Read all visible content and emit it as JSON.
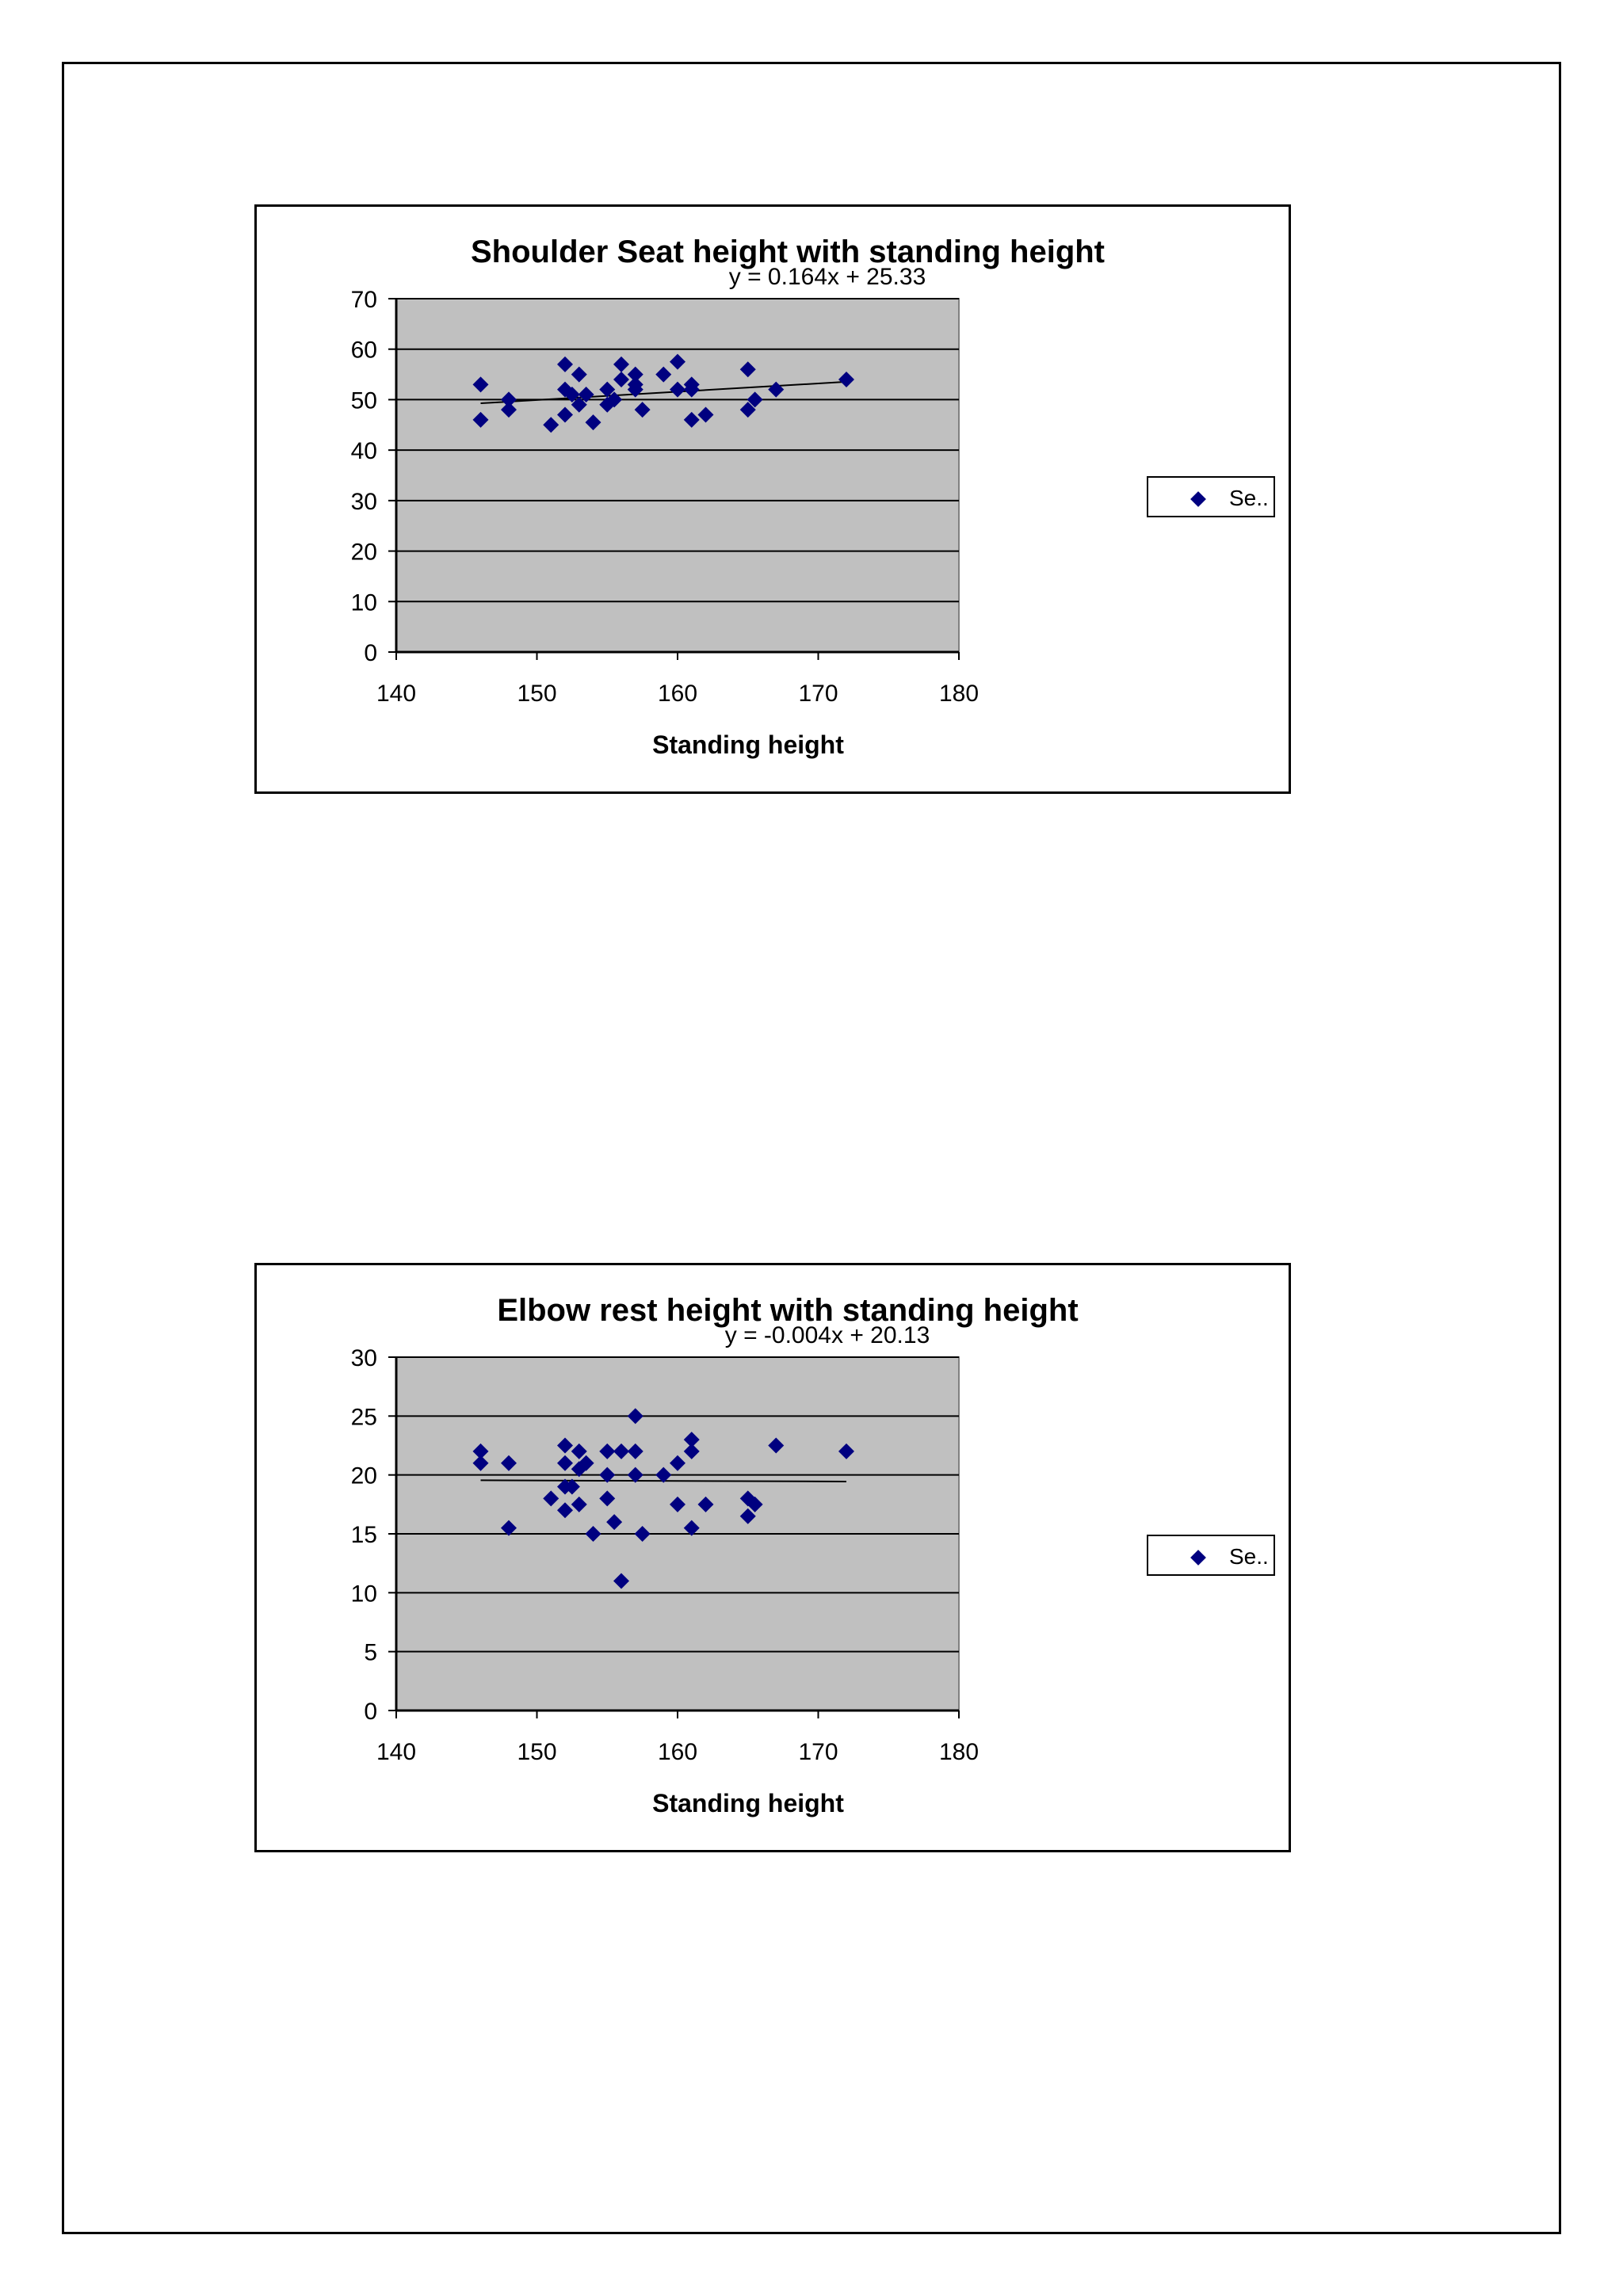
{
  "chart_data": [
    {
      "type": "scatter",
      "title": "Shoulder Seat height with standing height",
      "equation": "y = 0.164x  + 25.33",
      "xlabel": "Standing height",
      "ylabel": "",
      "xlim": [
        140,
        180
      ],
      "ylim": [
        0,
        70
      ],
      "xticks": [
        "140",
        "150",
        "160",
        "170",
        "180"
      ],
      "yticks": [
        "0",
        "10",
        "20",
        "30",
        "40",
        "50",
        "60",
        "70"
      ],
      "grid": true,
      "legend_position": "right",
      "trendline": {
        "slope": 0.164,
        "intercept": 25.33,
        "x_range": [
          146,
          172
        ]
      },
      "marker_color": "#000080",
      "plot_bg": "#c0c0c0",
      "series": [
        {
          "name": "Se..",
          "points": [
            [
              146,
              53
            ],
            [
              146,
              46
            ],
            [
              148,
              50
            ],
            [
              148,
              48
            ],
            [
              151,
              45
            ],
            [
              152,
              57
            ],
            [
              152,
              52
            ],
            [
              152,
              47
            ],
            [
              152.5,
              51
            ],
            [
              153,
              55
            ],
            [
              153,
              49
            ],
            [
              153.5,
              51
            ],
            [
              154,
              45.5
            ],
            [
              155,
              52
            ],
            [
              155,
              49
            ],
            [
              155.5,
              50
            ],
            [
              156,
              57
            ],
            [
              156,
              54
            ],
            [
              157,
              55
            ],
            [
              157,
              53
            ],
            [
              157,
              52
            ],
            [
              157.5,
              48
            ],
            [
              159,
              55
            ],
            [
              160,
              57.5
            ],
            [
              160,
              52
            ],
            [
              161,
              53
            ],
            [
              161,
              52
            ],
            [
              161,
              46
            ],
            [
              162,
              47
            ],
            [
              165,
              56
            ],
            [
              165,
              48
            ],
            [
              165.5,
              50
            ],
            [
              167,
              52
            ],
            [
              172,
              54
            ]
          ]
        }
      ]
    },
    {
      "type": "scatter",
      "title": "Elbow rest height with standing height",
      "equation": "y = -0.004x  + 20.13",
      "xlabel": "Standing height",
      "ylabel": "",
      "xlim": [
        140,
        180
      ],
      "ylim": [
        0,
        30
      ],
      "xticks": [
        "140",
        "150",
        "160",
        "170",
        "180"
      ],
      "yticks": [
        "0",
        "5",
        "10",
        "15",
        "20",
        "25",
        "30"
      ],
      "grid": true,
      "legend_position": "right",
      "trendline": {
        "slope": -0.004,
        "intercept": 20.13,
        "x_range": [
          146,
          172
        ]
      },
      "marker_color": "#000080",
      "plot_bg": "#c0c0c0",
      "series": [
        {
          "name": "Se..",
          "points": [
            [
              146,
              22
            ],
            [
              146,
              21
            ],
            [
              148,
              21
            ],
            [
              148,
              15.5
            ],
            [
              151,
              18
            ],
            [
              152,
              22.5
            ],
            [
              152,
              21
            ],
            [
              152,
              19
            ],
            [
              152,
              17
            ],
            [
              152.5,
              19
            ],
            [
              153,
              22
            ],
            [
              153,
              20.5
            ],
            [
              153,
              17.5
            ],
            [
              153.5,
              21
            ],
            [
              154,
              15
            ],
            [
              155,
              22
            ],
            [
              155,
              20
            ],
            [
              155,
              18
            ],
            [
              155.5,
              16
            ],
            [
              156,
              22
            ],
            [
              156,
              11
            ],
            [
              157,
              25
            ],
            [
              157,
              22
            ],
            [
              157,
              20
            ],
            [
              157.5,
              15
            ],
            [
              159,
              20
            ],
            [
              160,
              21
            ],
            [
              160,
              17.5
            ],
            [
              161,
              23
            ],
            [
              161,
              22
            ],
            [
              161,
              15.5
            ],
            [
              162,
              17.5
            ],
            [
              165,
              18
            ],
            [
              165,
              16.5
            ],
            [
              165.5,
              17.5
            ],
            [
              167,
              22.5
            ],
            [
              172,
              22
            ]
          ]
        }
      ]
    }
  ]
}
